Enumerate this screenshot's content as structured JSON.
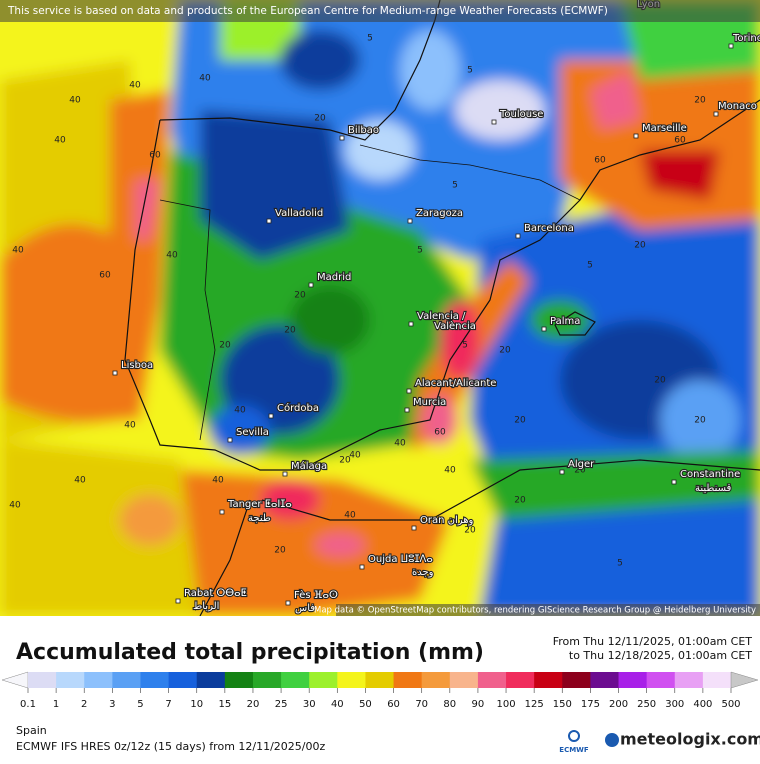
{
  "header": {
    "attribution": "This service is based on data and products of the European Centre for Medium-range Weather Forecasts (ECMWF)"
  },
  "map": {
    "credit": "Map data © OpenStreetMap contributors, rendering GIScience Research Group @ Heidelberg University",
    "cities": [
      "Lyon",
      "Torino",
      "Monaco",
      "Toulouse",
      "Marseille",
      "Bilbao",
      "Valladolid",
      "Zaragoza",
      "Barcelona",
      "Madrid",
      "Valencia /",
      "València",
      "Palma",
      "Lisboa",
      "Alacant/Alicante",
      "Murcia",
      "Córdoba",
      "Sevilla",
      "Málaga",
      "Alger",
      "Constantine",
      "قسنطينة",
      "Tanger ⵟⴰⵏⵊⴰ",
      "طنجة",
      "Oran وهران",
      "Oujda ⵡⵓⵊⴷⴰ",
      "وجدة",
      "Rabat ⵔⴱⴰⵟ",
      "الرباط",
      "Fès ⴼⴰⵙ",
      "فاس"
    ],
    "contours": [
      "40",
      "40",
      "40",
      "40",
      "60",
      "60",
      "40",
      "40",
      "40",
      "40",
      "40",
      "60",
      "20",
      "5",
      "5",
      "5",
      "5",
      "20",
      "20",
      "20",
      "5",
      "20",
      "20",
      "40",
      "60",
      "40",
      "20",
      "20",
      "20",
      "20",
      "5",
      "20",
      "60",
      "40",
      "40",
      "20",
      "20",
      "5",
      "20",
      "40",
      "20",
      "40"
    ]
  },
  "legend": {
    "title": "Accumulated total precipitation (mm)",
    "from": "From Thu 12/11/2025, 01:00am CET",
    "to": "to Thu 12/18/2025, 01:00am CET",
    "items": [
      {
        "label": "0.1",
        "color": "#dcdcf4"
      },
      {
        "label": "1",
        "color": "#b8d8fc"
      },
      {
        "label": "2",
        "color": "#8cc0fc"
      },
      {
        "label": "3",
        "color": "#5aa0f4"
      },
      {
        "label": "5",
        "color": "#2e80ec"
      },
      {
        "label": "7",
        "color": "#1660dc"
      },
      {
        "label": "10",
        "color": "#0a3c9c"
      },
      {
        "label": "15",
        "color": "#148214"
      },
      {
        "label": "20",
        "color": "#28a828"
      },
      {
        "label": "25",
        "color": "#40d040"
      },
      {
        "label": "30",
        "color": "#9cf02c"
      },
      {
        "label": "40",
        "color": "#f4f41c"
      },
      {
        "label": "50",
        "color": "#e4cc00"
      },
      {
        "label": "60",
        "color": "#f07814"
      },
      {
        "label": "70",
        "color": "#f49a3c"
      },
      {
        "label": "80",
        "color": "#f8b48c"
      },
      {
        "label": "90",
        "color": "#f0608c"
      },
      {
        "label": "100",
        "color": "#f02c5c"
      },
      {
        "label": "125",
        "color": "#c80014"
      },
      {
        "label": "150",
        "color": "#8c001c"
      },
      {
        "label": "175",
        "color": "#6c0c90"
      },
      {
        "label": "200",
        "color": "#a820e8"
      },
      {
        "label": "250",
        "color": "#d050f0"
      },
      {
        "label": "300",
        "color": "#e8a0f4"
      },
      {
        "label": "400",
        "color": "#f4e0fa"
      },
      {
        "label": "500",
        "color": "#c8c8c8"
      }
    ]
  },
  "footer": {
    "region": "Spain",
    "model": "ECMWF IFS HRES 0z/12z (15 days) from 12/11/2025/00z",
    "logo_small": "ECMWF",
    "logo": "meteologix.com"
  }
}
